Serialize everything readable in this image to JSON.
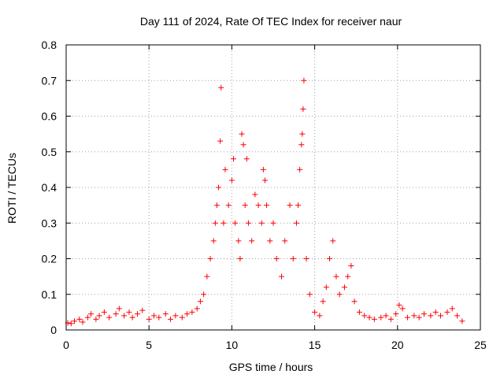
{
  "chart_data": {
    "type": "scatter",
    "title": "Day 111 of 2024, Rate Of TEC Index for receiver naur",
    "xlabel": "GPS time / hours",
    "ylabel": "ROTI / TECUs",
    "xlim": [
      0,
      25
    ],
    "ylim": [
      0,
      0.8
    ],
    "xticks": [
      0,
      5,
      10,
      15,
      20,
      25
    ],
    "yticks": [
      0,
      0.1,
      0.2,
      0.3,
      0.4,
      0.5,
      0.6,
      0.7,
      0.8
    ],
    "xtick_labels": [
      "0",
      "5",
      "10",
      "15",
      "20",
      "25"
    ],
    "ytick_labels": [
      "0",
      "0.1",
      "0.2",
      "0.3",
      "0.4",
      "0.5",
      "0.6",
      "0.7",
      "0.8"
    ],
    "grid": true,
    "marker": "+",
    "color": "#ff0000",
    "series": [
      {
        "name": "ROTI",
        "points": [
          [
            0.1,
            0.02
          ],
          [
            0.3,
            0.018
          ],
          [
            0.5,
            0.025
          ],
          [
            0.8,
            0.03
          ],
          [
            1.0,
            0.022
          ],
          [
            1.3,
            0.035
          ],
          [
            1.5,
            0.045
          ],
          [
            1.8,
            0.03
          ],
          [
            2.0,
            0.04
          ],
          [
            2.3,
            0.05
          ],
          [
            2.6,
            0.035
          ],
          [
            3.0,
            0.045
          ],
          [
            3.2,
            0.06
          ],
          [
            3.5,
            0.04
          ],
          [
            3.8,
            0.05
          ],
          [
            4.0,
            0.035
          ],
          [
            4.3,
            0.045
          ],
          [
            4.6,
            0.055
          ],
          [
            5.0,
            0.03
          ],
          [
            5.3,
            0.04
          ],
          [
            5.6,
            0.035
          ],
          [
            6.0,
            0.045
          ],
          [
            6.3,
            0.03
          ],
          [
            6.6,
            0.04
          ],
          [
            7.0,
            0.035
          ],
          [
            7.3,
            0.045
          ],
          [
            7.6,
            0.05
          ],
          [
            7.9,
            0.06
          ],
          [
            8.1,
            0.08
          ],
          [
            8.3,
            0.1
          ],
          [
            8.5,
            0.15
          ],
          [
            8.7,
            0.2
          ],
          [
            8.9,
            0.25
          ],
          [
            9.0,
            0.3
          ],
          [
            9.1,
            0.35
          ],
          [
            9.2,
            0.4
          ],
          [
            9.3,
            0.53
          ],
          [
            9.35,
            0.68
          ],
          [
            9.5,
            0.3
          ],
          [
            9.6,
            0.45
          ],
          [
            9.8,
            0.35
          ],
          [
            10.0,
            0.42
          ],
          [
            10.1,
            0.48
          ],
          [
            10.2,
            0.3
          ],
          [
            10.4,
            0.25
          ],
          [
            10.5,
            0.2
          ],
          [
            10.6,
            0.55
          ],
          [
            10.7,
            0.52
          ],
          [
            10.8,
            0.35
          ],
          [
            10.9,
            0.48
          ],
          [
            11.0,
            0.3
          ],
          [
            11.2,
            0.25
          ],
          [
            11.4,
            0.38
          ],
          [
            11.6,
            0.35
          ],
          [
            11.8,
            0.3
          ],
          [
            11.9,
            0.45
          ],
          [
            12.0,
            0.42
          ],
          [
            12.1,
            0.35
          ],
          [
            12.3,
            0.25
          ],
          [
            12.5,
            0.3
          ],
          [
            12.7,
            0.2
          ],
          [
            13.0,
            0.15
          ],
          [
            13.2,
            0.25
          ],
          [
            13.5,
            0.35
          ],
          [
            13.7,
            0.2
          ],
          [
            13.9,
            0.3
          ],
          [
            14.0,
            0.35
          ],
          [
            14.1,
            0.45
          ],
          [
            14.2,
            0.52
          ],
          [
            14.25,
            0.55
          ],
          [
            14.3,
            0.62
          ],
          [
            14.35,
            0.7
          ],
          [
            14.5,
            0.2
          ],
          [
            14.7,
            0.1
          ],
          [
            15.0,
            0.05
          ],
          [
            15.3,
            0.04
          ],
          [
            15.5,
            0.08
          ],
          [
            15.7,
            0.12
          ],
          [
            15.9,
            0.2
          ],
          [
            16.1,
            0.25
          ],
          [
            16.3,
            0.15
          ],
          [
            16.5,
            0.1
          ],
          [
            16.8,
            0.12
          ],
          [
            17.0,
            0.15
          ],
          [
            17.2,
            0.18
          ],
          [
            17.4,
            0.08
          ],
          [
            17.7,
            0.05
          ],
          [
            18.0,
            0.04
          ],
          [
            18.3,
            0.035
          ],
          [
            18.6,
            0.03
          ],
          [
            19.0,
            0.035
          ],
          [
            19.3,
            0.04
          ],
          [
            19.6,
            0.03
          ],
          [
            19.9,
            0.045
          ],
          [
            20.1,
            0.07
          ],
          [
            20.3,
            0.06
          ],
          [
            20.6,
            0.035
          ],
          [
            21.0,
            0.04
          ],
          [
            21.3,
            0.035
          ],
          [
            21.6,
            0.045
          ],
          [
            22.0,
            0.04
          ],
          [
            22.3,
            0.05
          ],
          [
            22.6,
            0.04
          ],
          [
            23.0,
            0.05
          ],
          [
            23.3,
            0.06
          ],
          [
            23.6,
            0.04
          ],
          [
            23.9,
            0.025
          ]
        ]
      }
    ]
  }
}
